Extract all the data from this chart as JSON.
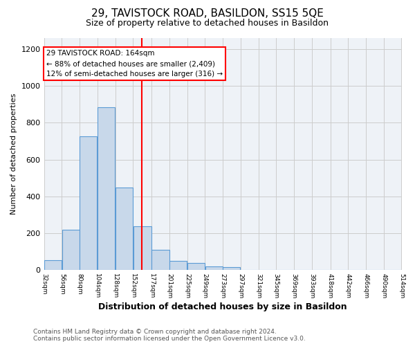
{
  "title": "29, TAVISTOCK ROAD, BASILDON, SS15 5QE",
  "subtitle": "Size of property relative to detached houses in Basildon",
  "xlabel": "Distribution of detached houses by size in Basildon",
  "ylabel": "Number of detached properties",
  "bar_left_edges": [
    32,
    56,
    80,
    104,
    128,
    152,
    177,
    201,
    225,
    249,
    273,
    297,
    321,
    345,
    369,
    393,
    418,
    442,
    466,
    490
  ],
  "bar_widths": [
    24,
    24,
    24,
    24,
    24,
    25,
    24,
    24,
    24,
    24,
    24,
    24,
    24,
    24,
    24,
    25,
    24,
    24,
    24,
    24
  ],
  "bar_heights": [
    55,
    218,
    728,
    885,
    447,
    237,
    108,
    50,
    38,
    20,
    15,
    0,
    0,
    0,
    0,
    0,
    0,
    0,
    0,
    0
  ],
  "bar_color": "#c8d8ea",
  "bar_edge_color": "#5b9bd5",
  "vline_x": 164,
  "vline_color": "red",
  "annotation_title": "29 TAVISTOCK ROAD: 164sqm",
  "annotation_line1": "← 88% of detached houses are smaller (2,409)",
  "annotation_line2": "12% of semi-detached houses are larger (316) →",
  "annotation_box_color": "white",
  "annotation_box_edge_color": "red",
  "ylim": [
    0,
    1260
  ],
  "yticks": [
    0,
    200,
    400,
    600,
    800,
    1000,
    1200
  ],
  "tick_labels": [
    "32sqm",
    "56sqm",
    "80sqm",
    "104sqm",
    "128sqm",
    "152sqm",
    "177sqm",
    "201sqm",
    "225sqm",
    "249sqm",
    "273sqm",
    "297sqm",
    "321sqm",
    "345sqm",
    "369sqm",
    "393sqm",
    "418sqm",
    "442sqm",
    "466sqm",
    "490sqm",
    "514sqm"
  ],
  "footer_line1": "Contains HM Land Registry data © Crown copyright and database right 2024.",
  "footer_line2": "Contains public sector information licensed under the Open Government Licence v3.0.",
  "bg_color": "#ffffff",
  "plot_bg_color": "#eef2f7",
  "grid_color": "#cccccc",
  "title_fontsize": 11,
  "subtitle_fontsize": 9,
  "ylabel_fontsize": 8,
  "xlabel_fontsize": 9
}
